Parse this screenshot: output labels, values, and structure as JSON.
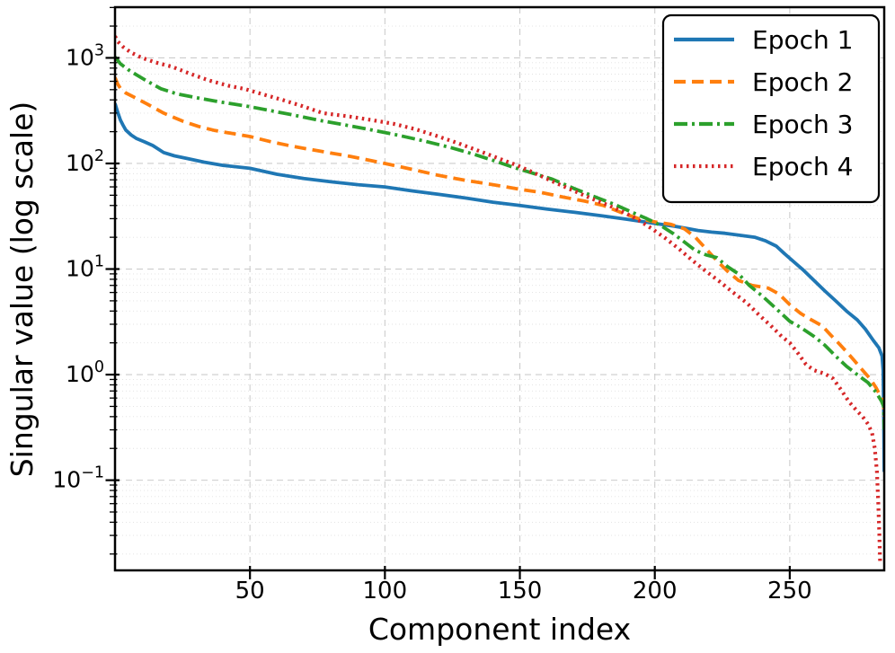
{
  "figure": {
    "background": "#ffffff",
    "axis_color": "#000000",
    "major_grid_color": "#cccccc",
    "minor_grid_color": "#e0e0e0"
  },
  "chart_data": {
    "type": "line",
    "title": "",
    "xlabel": "Component index",
    "ylabel": "Singular value (log scale)",
    "x_axis": {
      "min": 0,
      "max": 285,
      "ticks": [
        50,
        100,
        150,
        200,
        250
      ]
    },
    "y_axis": {
      "scale": "log",
      "min": 0.014,
      "max": 3020,
      "ticks": [
        1000,
        100,
        10,
        1,
        0.1
      ],
      "tick_exponents": [
        3,
        2,
        1,
        0,
        -1
      ]
    },
    "grid": true,
    "legend_position": "upper right",
    "series": [
      {
        "name": "Epoch 1",
        "color": "#1f77b4",
        "line_style": "solid",
        "points": [
          [
            0,
            370
          ],
          [
            1,
            305
          ],
          [
            2,
            258
          ],
          [
            3,
            230
          ],
          [
            4,
            207
          ],
          [
            6,
            186
          ],
          [
            8,
            172
          ],
          [
            11,
            160
          ],
          [
            14,
            148
          ],
          [
            18,
            127
          ],
          [
            22,
            118
          ],
          [
            27,
            111
          ],
          [
            33,
            103
          ],
          [
            40,
            96
          ],
          [
            50,
            90
          ],
          [
            60,
            79
          ],
          [
            70,
            72
          ],
          [
            80,
            67
          ],
          [
            90,
            63
          ],
          [
            100,
            60
          ],
          [
            110,
            55
          ],
          [
            120,
            51
          ],
          [
            130,
            47
          ],
          [
            140,
            43
          ],
          [
            150,
            40
          ],
          [
            160,
            37
          ],
          [
            170,
            34.5
          ],
          [
            180,
            32
          ],
          [
            190,
            29.5
          ],
          [
            200,
            27
          ],
          [
            207,
            25.5
          ],
          [
            212,
            24.2
          ],
          [
            216,
            23.2
          ],
          [
            221,
            22.4
          ],
          [
            226,
            21.8
          ],
          [
            232,
            20.8
          ],
          [
            237,
            20
          ],
          [
            241,
            18.5
          ],
          [
            245,
            16.5
          ],
          [
            248,
            14
          ],
          [
            251,
            12
          ],
          [
            255,
            9.8
          ],
          [
            259,
            7.8
          ],
          [
            263,
            6.2
          ],
          [
            267,
            5
          ],
          [
            271,
            4
          ],
          [
            275,
            3.3
          ],
          [
            278,
            2.7
          ],
          [
            281,
            2.1
          ],
          [
            283,
            1.8
          ],
          [
            284.2,
            1.5
          ],
          [
            284.6,
            1.1
          ],
          [
            284.8,
            0.5
          ],
          [
            285,
            0.12
          ]
        ]
      },
      {
        "name": "Epoch 2",
        "color": "#ff7f0e",
        "line_style": "dashed",
        "points": [
          [
            0,
            650
          ],
          [
            1,
            565
          ],
          [
            2,
            515
          ],
          [
            4,
            465
          ],
          [
            7,
            425
          ],
          [
            12,
            365
          ],
          [
            18,
            300
          ],
          [
            25,
            252
          ],
          [
            31,
            224
          ],
          [
            37,
            205
          ],
          [
            44,
            191
          ],
          [
            50,
            180
          ],
          [
            58,
            160
          ],
          [
            66,
            145
          ],
          [
            75,
            132
          ],
          [
            87,
            117
          ],
          [
            100,
            100
          ],
          [
            110,
            88
          ],
          [
            120,
            77
          ],
          [
            130,
            69
          ],
          [
            140,
            63
          ],
          [
            150,
            57
          ],
          [
            158,
            53
          ],
          [
            166,
            48
          ],
          [
            174,
            44
          ],
          [
            181,
            40
          ],
          [
            188,
            34
          ],
          [
            194,
            30
          ],
          [
            200,
            28
          ],
          [
            206,
            26.5
          ],
          [
            211,
            24
          ],
          [
            215,
            20
          ],
          [
            219,
            15.5
          ],
          [
            223,
            12
          ],
          [
            227,
            9.5
          ],
          [
            231,
            7.8
          ],
          [
            236,
            7
          ],
          [
            242,
            6.6
          ],
          [
            246,
            5.8
          ],
          [
            250,
            4.6
          ],
          [
            254,
            3.8
          ],
          [
            258,
            3.3
          ],
          [
            262,
            2.9
          ],
          [
            265,
            2.4
          ],
          [
            268,
            2
          ],
          [
            271,
            1.65
          ],
          [
            274,
            1.35
          ],
          [
            277,
            1.1
          ],
          [
            280,
            0.9
          ],
          [
            282,
            0.75
          ],
          [
            284,
            0.6
          ],
          [
            284.8,
            0.52
          ],
          [
            285,
            0.4
          ]
        ]
      },
      {
        "name": "Epoch 3",
        "color": "#2ca02c",
        "line_style": "dashdot",
        "points": [
          [
            0,
            1020
          ],
          [
            2,
            880
          ],
          [
            5,
            770
          ],
          [
            8,
            690
          ],
          [
            12,
            600
          ],
          [
            17,
            510
          ],
          [
            23,
            455
          ],
          [
            30,
            420
          ],
          [
            37,
            390
          ],
          [
            44,
            365
          ],
          [
            50,
            345
          ],
          [
            58,
            315
          ],
          [
            66,
            288
          ],
          [
            75,
            258
          ],
          [
            85,
            232
          ],
          [
            95,
            208
          ],
          [
            105,
            185
          ],
          [
            115,
            162
          ],
          [
            125,
            140
          ],
          [
            133,
            122
          ],
          [
            140,
            107
          ],
          [
            147,
            93
          ],
          [
            154,
            82
          ],
          [
            162,
            71
          ],
          [
            170,
            58
          ],
          [
            178,
            48
          ],
          [
            185,
            41
          ],
          [
            191,
            35
          ],
          [
            197,
            30
          ],
          [
            202,
            26
          ],
          [
            207,
            21.5
          ],
          [
            211,
            18
          ],
          [
            215,
            15
          ],
          [
            219,
            13.6
          ],
          [
            223,
            12.8
          ],
          [
            227,
            10.5
          ],
          [
            231,
            9
          ],
          [
            235,
            7
          ],
          [
            240,
            5.5
          ],
          [
            245,
            4.2
          ],
          [
            250,
            3.2
          ],
          [
            254,
            2.8
          ],
          [
            259,
            2.3
          ],
          [
            263,
            1.9
          ],
          [
            267,
            1.5
          ],
          [
            271,
            1.2
          ],
          [
            275,
            1.0
          ],
          [
            279,
            0.84
          ],
          [
            282,
            0.68
          ],
          [
            284,
            0.56
          ],
          [
            284.8,
            0.5
          ],
          [
            285,
            0.3
          ]
        ]
      },
      {
        "name": "Epoch 4",
        "color": "#d62728",
        "line_style": "dotted",
        "points": [
          [
            0,
            1600
          ],
          [
            1,
            1430
          ],
          [
            3,
            1270
          ],
          [
            6,
            1120
          ],
          [
            10,
            1000
          ],
          [
            15,
            905
          ],
          [
            21,
            825
          ],
          [
            28,
            705
          ],
          [
            35,
            610
          ],
          [
            42,
            545
          ],
          [
            48,
            508
          ],
          [
            55,
            450
          ],
          [
            62,
            400
          ],
          [
            69,
            352
          ],
          [
            77,
            300
          ],
          [
            87,
            278
          ],
          [
            95,
            258
          ],
          [
            103,
            238
          ],
          [
            111,
            212
          ],
          [
            119,
            183
          ],
          [
            127,
            156
          ],
          [
            135,
            131
          ],
          [
            142,
            112
          ],
          [
            149,
            96
          ],
          [
            156,
            80
          ],
          [
            163,
            66
          ],
          [
            170,
            55
          ],
          [
            177,
            46
          ],
          [
            183,
            40
          ],
          [
            189,
            34
          ],
          [
            194,
            29
          ],
          [
            199,
            24
          ],
          [
            204,
            19.5
          ],
          [
            209,
            15.5
          ],
          [
            214,
            12
          ],
          [
            219,
            9.5
          ],
          [
            224,
            7.6
          ],
          [
            229,
            6
          ],
          [
            234,
            4.8
          ],
          [
            239,
            3.6
          ],
          [
            243,
            2.9
          ],
          [
            247,
            2.3
          ],
          [
            250,
            2
          ],
          [
            253,
            1.6
          ],
          [
            256,
            1.25
          ],
          [
            259,
            1.1
          ],
          [
            263,
            1.02
          ],
          [
            266,
            0.92
          ],
          [
            269,
            0.72
          ],
          [
            272,
            0.55
          ],
          [
            275,
            0.45
          ],
          [
            277,
            0.4
          ],
          [
            279,
            0.34
          ],
          [
            280.5,
            0.28
          ],
          [
            281.5,
            0.2
          ],
          [
            282.3,
            0.12
          ],
          [
            282.8,
            0.06
          ],
          [
            283.2,
            0.03
          ],
          [
            283.5,
            0.016
          ]
        ]
      }
    ]
  }
}
